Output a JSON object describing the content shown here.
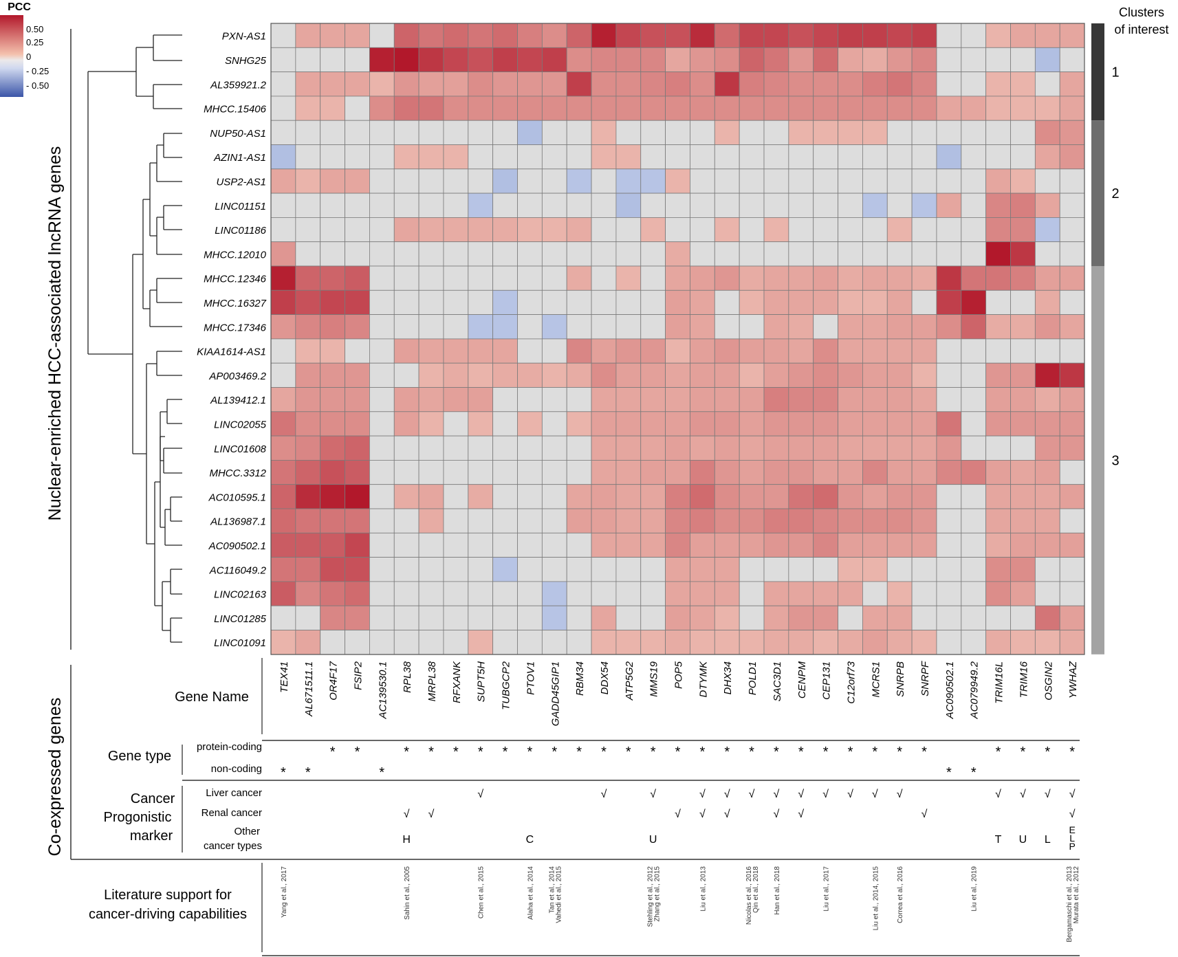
{
  "legend": {
    "title": "PCC",
    "ticks": [
      "0.50",
      "0.25",
      "0",
      "- 0.25",
      "- 0.50"
    ]
  },
  "clusters": {
    "title_line1": "Clusters",
    "title_line2": "of interest",
    "items": [
      {
        "label": "1",
        "start_row": 0,
        "end_row": 3,
        "color": "#373737"
      },
      {
        "label": "2",
        "start_row": 4,
        "end_row": 9,
        "color": "#6d6d6d"
      },
      {
        "label": "3",
        "start_row": 10,
        "end_row": 25,
        "color": "#a3a3a3"
      }
    ]
  },
  "y_axis_title": "Nuclear-enriched HCC-associated lncRNA genes",
  "left_section_title": "Co-expressed genes",
  "table_labels": {
    "gene_name": "Gene Name",
    "gene_type": "Gene type",
    "protein_coding": "protein-coding",
    "non_coding": "non-coding",
    "marker_line1": "Cancer",
    "marker_line2": "Progonistic",
    "marker_line3": "marker",
    "liver": "Liver cancer",
    "renal": "Renal cancer",
    "other_line1": "Other",
    "other_line2": "cancer types",
    "lit_line1": "Literature support for",
    "lit_line2": "cancer-driving capabilities"
  },
  "gene_table": {
    "protein_coding": [
      2,
      3,
      5,
      6,
      7,
      8,
      9,
      10,
      11,
      12,
      13,
      14,
      15,
      16,
      17,
      18,
      19,
      20,
      21,
      22,
      23,
      24,
      25,
      26,
      29,
      30,
      31,
      32
    ],
    "non_coding": [
      0,
      1,
      4,
      27,
      28
    ],
    "star": "*",
    "check": "√",
    "liver": [
      8,
      13,
      15,
      17,
      18,
      19,
      20,
      21,
      22,
      23,
      24,
      25,
      29,
      30,
      31,
      32
    ],
    "renal": [
      5,
      6,
      16,
      17,
      18,
      20,
      21,
      26,
      32
    ],
    "other": [
      {
        "col": 5,
        "text": "H"
      },
      {
        "col": 10,
        "text": "C"
      },
      {
        "col": 15,
        "text": "U"
      },
      {
        "col": 29,
        "text": "T"
      },
      {
        "col": 30,
        "text": "U"
      },
      {
        "col": 31,
        "text": "L"
      },
      {
        "col": 32,
        "text": "E L P"
      }
    ],
    "literature": [
      {
        "col": 0,
        "lines": [
          "Yang et al., 2017"
        ]
      },
      {
        "col": 5,
        "lines": [
          "Sahin et al., 2005"
        ]
      },
      {
        "col": 8,
        "lines": [
          "Chen et al., 2015"
        ]
      },
      {
        "col": 10,
        "lines": [
          "Alaha et al., 2014"
        ]
      },
      {
        "col": 11,
        "lines": [
          "Tan et al., 2014",
          "Vahedi et al., 2015"
        ]
      },
      {
        "col": 15,
        "lines": [
          "Stehling et al., 2012",
          "Zhang et al., 2015"
        ]
      },
      {
        "col": 17,
        "lines": [
          "Liu et al., 2013"
        ]
      },
      {
        "col": 19,
        "lines": [
          "Nicolas et al., 2016",
          "Qin et al., 2018"
        ]
      },
      {
        "col": 20,
        "lines": [
          "Han et al., 2018"
        ]
      },
      {
        "col": 22,
        "lines": [
          "Liu et al., 2017"
        ]
      },
      {
        "col": 24,
        "lines": [
          "Liu et al., 2014, 2015"
        ]
      },
      {
        "col": 25,
        "lines": [
          "Correa et al., 2016"
        ]
      },
      {
        "col": 28,
        "lines": [
          "Liu et al., 2019"
        ]
      },
      {
        "col": 32,
        "lines": [
          "Bergamaschi et al., 2013",
          "Murata et al., 2012"
        ]
      }
    ]
  },
  "chart_data": {
    "type": "heatmap",
    "title": "",
    "xlabel": "Co-expressed genes",
    "ylabel": "Nuclear-enriched HCC-associated lncRNA genes",
    "value_label": "PCC",
    "color_range": [
      -0.5,
      0.6
    ],
    "colors": {
      "neutral": "#dddddd",
      "positive": "#b2182b",
      "negative": "#3b55a8"
    },
    "rows": [
      "PXN-AS1",
      "SNHG25",
      "AL359921.2",
      "MHCC.15406",
      "NUP50-AS1",
      "AZIN1-AS1",
      "USP2-AS1",
      "LINC01151",
      "LINC01186",
      "MHCC.12010",
      "MHCC.12346",
      "MHCC.16327",
      "MHCC.17346",
      "KIAA1614-AS1",
      "AP003469.2",
      "AL139412.1",
      "LINC02055",
      "LINC01608",
      "MHCC.3312",
      "AC010595.1",
      "AL136987.1",
      "AC090502.1",
      "AC116049.2",
      "LINC02163",
      "LINC01285",
      "LINC01091"
    ],
    "columns": [
      "TEX41",
      "AL671511.1",
      "OR4F17",
      "FSIP2",
      "AC139530.1",
      "RPL38",
      "MRPL38",
      "RFXANK",
      "SUPT5H",
      "TUBGCP2",
      "PTOV1",
      "GADD45GIP1",
      "RBM34",
      "DDX54",
      "ATP5G2",
      "MMS19",
      "POP5",
      "DTYMK",
      "DHX34",
      "POLD1",
      "SAC3D1",
      "CENPM",
      "CEP131",
      "C12orf73",
      "MCRS1",
      "SNRPB",
      "SNRPF",
      "AC090502.1",
      "AC079949.2",
      "TRIM16L",
      "TRIM16",
      "OSGIN2",
      "YWHAZ"
    ],
    "values": [
      [
        0,
        0.2,
        0.2,
        0.2,
        0,
        0.4,
        0.35,
        0.38,
        0.35,
        0.38,
        0.32,
        0.28,
        0.4,
        0.58,
        0.48,
        0.45,
        0.45,
        0.55,
        0.38,
        0.48,
        0.48,
        0.45,
        0.48,
        0.5,
        0.5,
        0.48,
        0.5,
        0,
        0,
        0.15,
        0.2,
        0.2,
        0.2
      ],
      [
        0,
        0,
        0,
        0,
        0.58,
        0.6,
        0.52,
        0.48,
        0.45,
        0.5,
        0.48,
        0.5,
        0.28,
        0.3,
        0.3,
        0.3,
        0.2,
        0.25,
        0.28,
        0.4,
        0.35,
        0.25,
        0.38,
        0.2,
        0.18,
        0.25,
        0.3,
        0,
        0,
        0,
        0,
        -0.12,
        0
      ],
      [
        0,
        0.2,
        0.2,
        0.2,
        0.15,
        0.25,
        0.22,
        0.22,
        0.28,
        0.25,
        0.25,
        0.25,
        0.5,
        0.28,
        0.28,
        0.3,
        0.32,
        0.28,
        0.52,
        0.32,
        0.3,
        0.28,
        0.28,
        0.28,
        0.32,
        0.35,
        0.3,
        0,
        0,
        0.15,
        0.15,
        0,
        0.2
      ],
      [
        0,
        0.15,
        0.15,
        0,
        0.28,
        0.35,
        0.35,
        0.28,
        0.28,
        0.28,
        0.28,
        0.28,
        0.28,
        0.28,
        0.28,
        0.28,
        0.28,
        0.28,
        0.28,
        0.28,
        0.28,
        0.28,
        0.28,
        0.28,
        0.28,
        0.28,
        0.28,
        0.2,
        0.2,
        0.15,
        0.15,
        0.15,
        0.2
      ],
      [
        0,
        0,
        0,
        0,
        0,
        0,
        0,
        0,
        0,
        0,
        -0.12,
        0,
        0,
        0.15,
        0,
        0,
        0,
        0,
        0.15,
        0,
        0,
        0.15,
        0.15,
        0.15,
        0.15,
        0,
        0,
        0,
        0,
        0,
        0,
        0.28,
        0.25
      ],
      [
        -0.12,
        0,
        0,
        0,
        0,
        0.15,
        0.15,
        0.15,
        0,
        0,
        0,
        0,
        0,
        0.15,
        0.15,
        0,
        0,
        0,
        0,
        0,
        0,
        0,
        0,
        0,
        0,
        0,
        0,
        -0.12,
        0,
        0,
        0,
        0.2,
        0.25
      ],
      [
        0.2,
        0.15,
        0.2,
        0.2,
        0,
        0,
        0,
        0,
        0,
        -0.12,
        0,
        0,
        -0.1,
        0,
        -0.1,
        -0.1,
        0.15,
        0,
        0,
        0,
        0,
        0,
        0,
        0,
        0,
        0,
        0,
        0,
        0,
        0.2,
        0.15,
        0,
        0
      ],
      [
        0,
        0,
        0,
        0,
        0,
        0,
        0,
        0,
        -0.1,
        0,
        0,
        0,
        0,
        0,
        -0.12,
        0,
        0,
        0,
        0,
        0,
        0,
        0,
        0,
        0,
        -0.1,
        0,
        -0.1,
        0.2,
        0,
        0.3,
        0.32,
        0.2,
        0
      ],
      [
        0,
        0,
        0,
        0,
        0,
        0.2,
        0.18,
        0.18,
        0.18,
        0.18,
        0.15,
        0.15,
        0.18,
        0,
        0,
        0.15,
        0,
        0,
        0.15,
        0,
        0.15,
        0,
        0,
        0,
        0,
        0.15,
        0,
        0,
        0,
        0.3,
        0.3,
        -0.1,
        0
      ],
      [
        0.25,
        0,
        0,
        0,
        0,
        0,
        0,
        0,
        0,
        0,
        0,
        0,
        0,
        0,
        0,
        0,
        0.18,
        0,
        0,
        0,
        0,
        0,
        0,
        0,
        0,
        0,
        0,
        0,
        0,
        0.62,
        0.52,
        0,
        0
      ],
      [
        0.58,
        0.4,
        0.4,
        0.42,
        0,
        0,
        0,
        0,
        0,
        0,
        0,
        0,
        0.18,
        0,
        0.15,
        0,
        0.2,
        0.22,
        0.25,
        0.18,
        0.2,
        0.2,
        0.22,
        0.18,
        0.2,
        0.2,
        0.18,
        0.52,
        0.35,
        0.35,
        0.32,
        0.22,
        0.22
      ],
      [
        0.5,
        0.45,
        0.48,
        0.48,
        0,
        0,
        0,
        0,
        0,
        -0.1,
        0,
        0,
        0,
        0,
        0,
        0,
        0.22,
        0.2,
        0,
        0.15,
        0.2,
        0.2,
        0.2,
        0.15,
        0.15,
        0.2,
        0,
        0.5,
        0.58,
        0,
        0,
        0.18,
        0
      ],
      [
        0.25,
        0.3,
        0.32,
        0.3,
        0,
        0,
        0,
        0,
        -0.1,
        -0.1,
        0,
        -0.1,
        0,
        0,
        0,
        0,
        0.22,
        0.2,
        0,
        0,
        0.2,
        0.18,
        0,
        0.2,
        0.2,
        0.22,
        0.22,
        0.28,
        0.4,
        0.18,
        0.18,
        0.25,
        0.2
      ],
      [
        0,
        0.15,
        0.15,
        0,
        0,
        0.22,
        0.2,
        0.2,
        0.2,
        0.2,
        0,
        0,
        0.3,
        0.22,
        0.25,
        0.25,
        0.15,
        0.22,
        0.25,
        0.22,
        0.22,
        0.2,
        0.28,
        0.2,
        0.2,
        0.2,
        0.2,
        0,
        0,
        0,
        0,
        0,
        0
      ],
      [
        0,
        0.25,
        0.25,
        0.25,
        0,
        0,
        0.15,
        0.18,
        0.15,
        0.18,
        0.18,
        0.15,
        0.18,
        0.28,
        0.22,
        0.22,
        0.2,
        0.22,
        0.22,
        0.15,
        0.22,
        0.25,
        0.28,
        0.25,
        0.22,
        0.22,
        0.15,
        0,
        0,
        0.25,
        0.25,
        0.58,
        0.52
      ],
      [
        0.2,
        0.25,
        0.25,
        0.25,
        0,
        0.22,
        0.2,
        0.22,
        0.22,
        0,
        0,
        0,
        0,
        0.2,
        0.2,
        0.2,
        0.2,
        0.22,
        0.22,
        0.22,
        0.32,
        0.3,
        0.3,
        0.22,
        0.22,
        0.22,
        0.2,
        0,
        0,
        0.22,
        0.22,
        0.18,
        0.22
      ],
      [
        0.35,
        0.28,
        0.28,
        0.28,
        0,
        0.22,
        0.15,
        0,
        0.15,
        0,
        0.15,
        0,
        0.15,
        0.22,
        0.22,
        0.22,
        0.22,
        0.25,
        0.25,
        0.22,
        0.25,
        0.25,
        0.25,
        0.22,
        0.22,
        0.22,
        0.22,
        0.35,
        0,
        0.25,
        0.25,
        0.25,
        0.25
      ],
      [
        0.28,
        0.3,
        0.38,
        0.4,
        0,
        0,
        0,
        0,
        0,
        0,
        0,
        0,
        0,
        0.2,
        0.2,
        0.2,
        0.22,
        0.2,
        0.22,
        0.2,
        0.22,
        0.22,
        0.22,
        0.2,
        0.2,
        0.2,
        0.2,
        0.25,
        0,
        0,
        0,
        0.25,
        0.25
      ],
      [
        0.35,
        0.4,
        0.45,
        0.42,
        0,
        0,
        0,
        0,
        0,
        0,
        0,
        0,
        0,
        0.2,
        0.2,
        0.22,
        0.22,
        0.32,
        0.25,
        0.22,
        0.25,
        0.25,
        0.22,
        0.22,
        0.3,
        0.22,
        0.22,
        0.3,
        0.32,
        0.22,
        0.2,
        0.22,
        0
      ],
      [
        0.4,
        0.55,
        0.58,
        0.6,
        0,
        0.18,
        0.2,
        0,
        0.18,
        0,
        0,
        0,
        0.2,
        0.22,
        0.2,
        0.2,
        0.32,
        0.38,
        0.28,
        0.25,
        0.25,
        0.35,
        0.38,
        0.25,
        0.22,
        0.25,
        0.25,
        0,
        0,
        0.2,
        0.2,
        0.2,
        0.22
      ],
      [
        0.38,
        0.35,
        0.35,
        0.35,
        0,
        0,
        0.18,
        0,
        0,
        0,
        0,
        0,
        0.22,
        0.22,
        0.2,
        0.2,
        0.3,
        0.32,
        0.28,
        0.28,
        0.32,
        0.32,
        0.3,
        0.28,
        0.28,
        0.28,
        0.25,
        0,
        0,
        0.2,
        0.2,
        0.2,
        0
      ],
      [
        0.42,
        0.42,
        0.42,
        0.48,
        0,
        0,
        0,
        0,
        0,
        0,
        0,
        0,
        0,
        0.2,
        0.2,
        0.2,
        0.3,
        0.22,
        0.22,
        0.22,
        0.25,
        0.25,
        0.3,
        0.22,
        0.22,
        0.22,
        0.22,
        0,
        0,
        0.18,
        0.22,
        0.22,
        0.22
      ],
      [
        0.35,
        0.35,
        0.45,
        0.45,
        0,
        0,
        0,
        0,
        0,
        -0.1,
        0,
        0,
        0,
        0,
        0,
        0,
        0.2,
        0.2,
        0.2,
        0,
        0,
        0,
        0,
        0.15,
        0.15,
        0,
        0,
        0,
        0,
        0.28,
        0.28,
        0,
        0
      ],
      [
        0.42,
        0.3,
        0.35,
        0.38,
        0,
        0,
        0,
        0,
        0,
        0,
        0,
        -0.1,
        0,
        0,
        0,
        0,
        0.2,
        0.2,
        0.2,
        0,
        0.2,
        0.2,
        0.2,
        0.2,
        0,
        0.15,
        0,
        0,
        0,
        0.28,
        0.22,
        0,
        0
      ],
      [
        0,
        0,
        0.3,
        0.3,
        0,
        0,
        0,
        0,
        0,
        0,
        0,
        -0.1,
        0,
        0.2,
        0,
        0,
        0.22,
        0.2,
        0.15,
        0,
        0.2,
        0.25,
        0.25,
        0,
        0.2,
        0.2,
        0,
        0,
        0,
        0,
        0,
        0.35,
        0.22
      ],
      [
        0.15,
        0.2,
        0,
        0,
        0,
        0,
        0,
        0,
        0.15,
        0,
        0,
        0,
        0,
        0.15,
        0.15,
        0.15,
        0.18,
        0.15,
        0.15,
        0.15,
        0.18,
        0.18,
        0.15,
        0.18,
        0.22,
        0.18,
        0.15,
        0,
        0,
        0.18,
        0.15,
        0.15,
        0.18
      ]
    ]
  }
}
